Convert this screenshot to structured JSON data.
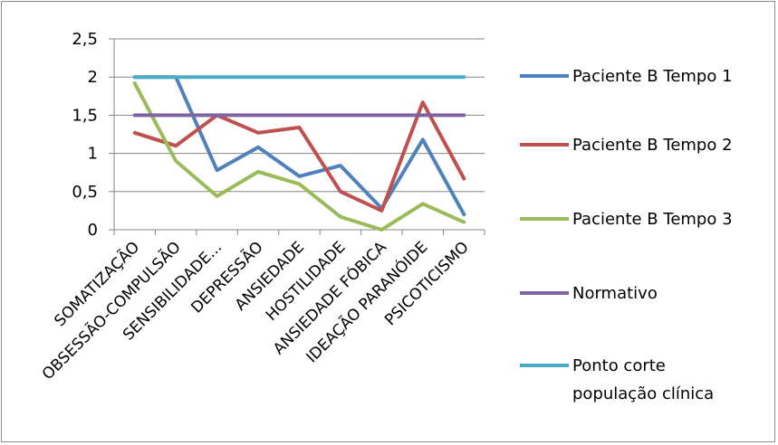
{
  "chart_data": {
    "type": "line",
    "categories": [
      "SOMATIZAÇÃO",
      "OBSESSÃO-COMPULSÃO",
      "SENSIBILIDADE...",
      "DEPRESSÃO",
      "ANSIEDADE",
      "HOSTILIDADE",
      "ANSIEDADE FÓBICA",
      "IDEAÇÃO PARANÓIDE",
      "PSICOTICISMO"
    ],
    "yticks": [
      "0",
      "0,5",
      "1",
      "1,5",
      "2",
      "2,5"
    ],
    "ylim": [
      0,
      2.5
    ],
    "grid": true,
    "legend_position": "right",
    "series": [
      {
        "name": "Paciente B Tempo 1",
        "color": "#4f81bd",
        "values": [
          2.0,
          2.0,
          0.78,
          1.08,
          0.7,
          0.84,
          0.28,
          1.18,
          0.2
        ]
      },
      {
        "name": "Paciente B Tempo 2",
        "color": "#c0504d",
        "values": [
          1.27,
          1.1,
          1.5,
          1.27,
          1.34,
          0.5,
          0.25,
          1.67,
          0.67
        ]
      },
      {
        "name": "Paciente B Tempo 3",
        "color": "#9bbb59",
        "values": [
          1.92,
          0.9,
          0.44,
          0.76,
          0.6,
          0.17,
          0.0,
          0.34,
          0.1
        ]
      },
      {
        "name": "Normativo",
        "color": "#8064a2",
        "values": [
          1.5,
          1.5,
          1.5,
          1.5,
          1.5,
          1.5,
          1.5,
          1.5,
          1.5
        ]
      },
      {
        "name": "Ponto corte população clínica",
        "color": "#4bacc6",
        "legend_lines": [
          "Ponto corte",
          "população clínica"
        ],
        "values": [
          2.0,
          2.0,
          2.0,
          2.0,
          2.0,
          2.0,
          2.0,
          2.0,
          2.0
        ]
      }
    ]
  }
}
